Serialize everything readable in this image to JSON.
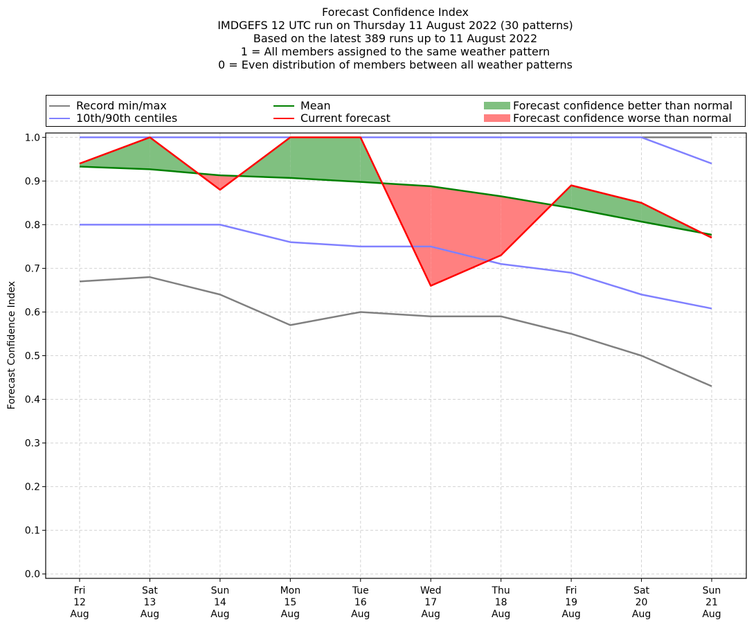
{
  "title_lines": [
    "Forecast Confidence Index",
    "IMDGEFS 12 UTC run on Thursday 11 August 2022 (30 patterns)",
    "Based on the latest 389 runs up to 11 August 2022",
    "1 = All members assigned to the same weather pattern",
    "0 = Even distribution of members between all weather patterns"
  ],
  "legend": {
    "record": {
      "label": "Record min/max",
      "color": "#808080"
    },
    "centiles": {
      "label": "10th/90th centiles",
      "color": "#8080ff"
    },
    "mean": {
      "label": "Mean",
      "color": "#008000"
    },
    "current": {
      "label": "Current forecast",
      "color": "#ff0000"
    },
    "better": {
      "label": "Forecast confidence better than normal",
      "color": "#80c080"
    },
    "worse": {
      "label": "Forecast confidence worse than normal",
      "color": "#ff8080"
    }
  },
  "chart_data": {
    "type": "line",
    "ylabel": "Forecast Confidence Index",
    "ylim": [
      -0.01,
      1.01
    ],
    "yticks": [
      "0.0",
      "0.1",
      "0.2",
      "0.3",
      "0.4",
      "0.5",
      "0.6",
      "0.7",
      "0.8",
      "0.9",
      "1.0"
    ],
    "grid": true,
    "legend_position": "top",
    "categories": [
      [
        "Fri",
        "12",
        "Aug"
      ],
      [
        "Sat",
        "13",
        "Aug"
      ],
      [
        "Sun",
        "14",
        "Aug"
      ],
      [
        "Mon",
        "15",
        "Aug"
      ],
      [
        "Tue",
        "16",
        "Aug"
      ],
      [
        "Wed",
        "17",
        "Aug"
      ],
      [
        "Thu",
        "18",
        "Aug"
      ],
      [
        "Fri",
        "19",
        "Aug"
      ],
      [
        "Sat",
        "20",
        "Aug"
      ],
      [
        "Sun",
        "21",
        "Aug"
      ]
    ],
    "series": [
      {
        "name": "Record min/max",
        "key": "record_max",
        "color": "#808080",
        "values": [
          1.0,
          1.0,
          1.0,
          1.0,
          1.0,
          1.0,
          1.0,
          1.0,
          1.0,
          1.0
        ]
      },
      {
        "name": "Record min/max",
        "key": "record_min",
        "color": "#808080",
        "values": [
          0.67,
          0.68,
          0.64,
          0.57,
          0.6,
          0.59,
          0.59,
          0.55,
          0.5,
          0.43
        ]
      },
      {
        "name": "10th/90th centiles",
        "key": "p90",
        "color": "#8080ff",
        "values": [
          1.0,
          1.0,
          1.0,
          1.0,
          1.0,
          1.0,
          1.0,
          1.0,
          1.0,
          0.94
        ]
      },
      {
        "name": "10th/90th centiles",
        "key": "p10",
        "color": "#8080ff",
        "values": [
          0.8,
          0.8,
          0.8,
          0.76,
          0.75,
          0.75,
          0.71,
          0.69,
          0.64,
          0.608
        ]
      },
      {
        "name": "Mean",
        "key": "mean",
        "color": "#008000",
        "values": [
          0.933,
          0.927,
          0.913,
          0.907,
          0.898,
          0.888,
          0.865,
          0.838,
          0.807,
          0.777
        ]
      },
      {
        "name": "Current forecast",
        "key": "current",
        "color": "#ff0000",
        "values": [
          0.94,
          1.0,
          0.88,
          1.0,
          1.0,
          0.66,
          0.73,
          0.89,
          0.85,
          0.77
        ]
      }
    ],
    "fill_better_color": "#80c080",
    "fill_worse_color": "#ff8080"
  }
}
